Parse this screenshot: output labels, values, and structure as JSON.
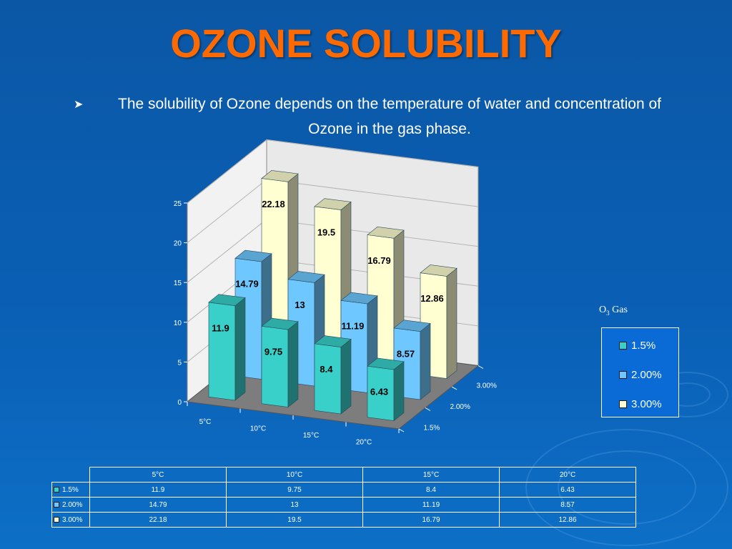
{
  "slide": {
    "title": "OZONE SOLUBILITY",
    "bullet": "The solubility of Ozone depends on the temperature of water and concentration of Ozone in the gas phase."
  },
  "legend": {
    "title_prefix": "O",
    "title_sub": "3",
    "title_suffix": " Gas"
  },
  "colors": {
    "background": "#0b57a6",
    "title": "#ff6a00",
    "series_1_5": "#39d0c9",
    "series_2_00": "#6ec8ff",
    "series_3_00": "#ffffd2"
  },
  "chart_data": {
    "type": "bar",
    "style": "3d-clustered-depth",
    "categories": [
      "5°C",
      "10°C",
      "15°C",
      "20°C"
    ],
    "series": [
      {
        "name": "1.5%",
        "values": [
          11.9,
          9.75,
          8.4,
          6.43
        ]
      },
      {
        "name": "2.00%",
        "values": [
          14.79,
          13,
          11.19,
          8.57
        ]
      },
      {
        "name": "3.00%",
        "values": [
          22.18,
          19.5,
          16.79,
          12.86
        ]
      }
    ],
    "y_ticks": [
      "0",
      "5",
      "10",
      "15",
      "20",
      "25"
    ],
    "ylim": [
      0,
      25
    ],
    "depth_labels": [
      "1.5%",
      "2.00%",
      "3.00%"
    ],
    "data_labels": true,
    "legend_position": "right",
    "data_table": true
  }
}
